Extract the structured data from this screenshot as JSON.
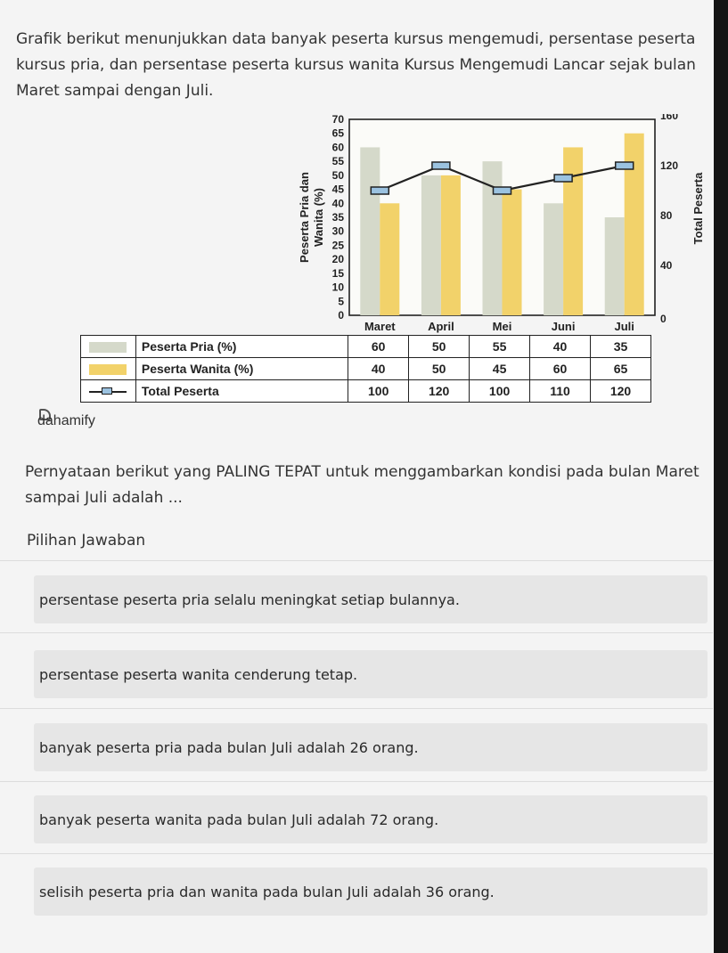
{
  "question": {
    "intro_line1": "Grafik berikut menunjukkan data banyak peserta kursus mengemudi, persentase peserta",
    "intro_line2": "kursus pria, dan persentase peserta kursus wanita Kursus Mengemudi Lancar sejak bulan",
    "intro_line3": "Maret sampai dengan Juli.",
    "prompt_line1": "Pernyataan berikut yang PALING TEPAT untuk menggambarkan kondisi pada bulan Maret",
    "prompt_line2": "sampai Juli adalah ..."
  },
  "brand": "dahamify",
  "chart_data": {
    "type": "bar",
    "categories": [
      "Maret",
      "April",
      "Mei",
      "Juni",
      "Juli"
    ],
    "series": [
      {
        "name": "Peserta Pria (%)",
        "type": "bar",
        "axis": "left",
        "values": [
          60,
          50,
          55,
          40,
          35
        ],
        "color": "#d5d9ca"
      },
      {
        "name": "Peserta Wanita (%)",
        "type": "bar",
        "axis": "left",
        "values": [
          40,
          50,
          45,
          60,
          65
        ],
        "color": "#f2d26a"
      },
      {
        "name": "Total Peserta",
        "type": "line",
        "axis": "right",
        "values": [
          100,
          120,
          100,
          110,
          120
        ],
        "color": "#222222",
        "marker_color": "#9bc2e0"
      }
    ],
    "ylabel_left_line1": "Peserta Pria dan",
    "ylabel_left_line2": "Wanita (%)",
    "ylabel_right": "Total Peserta",
    "ylim_left": [
      0,
      70
    ],
    "ylim_right": [
      0,
      160
    ],
    "yticks_left": [
      "0",
      "5",
      "10",
      "15",
      "20",
      "25",
      "30",
      "35",
      "40",
      "45",
      "50",
      "55",
      "60",
      "65",
      "70"
    ],
    "yticks_right": [
      "0",
      "40",
      "80",
      "120",
      "160"
    ],
    "grid": false
  },
  "table": {
    "rows": [
      {
        "label": "Peserta Pria (%)",
        "values": [
          "60",
          "50",
          "55",
          "40",
          "35"
        ]
      },
      {
        "label": "Peserta Wanita (%)",
        "values": [
          "40",
          "50",
          "45",
          "60",
          "65"
        ]
      },
      {
        "label": "Total Peserta",
        "values": [
          "100",
          "120",
          "100",
          "110",
          "120"
        ]
      }
    ]
  },
  "answers": {
    "heading": "Pilihan Jawaban",
    "options": [
      "persentase peserta pria selalu meningkat setiap bulannya.",
      "persentase peserta wanita cenderung tetap.",
      "banyak peserta pria pada bulan Juli adalah 26 orang.",
      "banyak peserta wanita pada bulan Juli adalah 72 orang.",
      "selisih peserta pria dan wanita pada bulan Juli adalah 36 orang."
    ]
  }
}
